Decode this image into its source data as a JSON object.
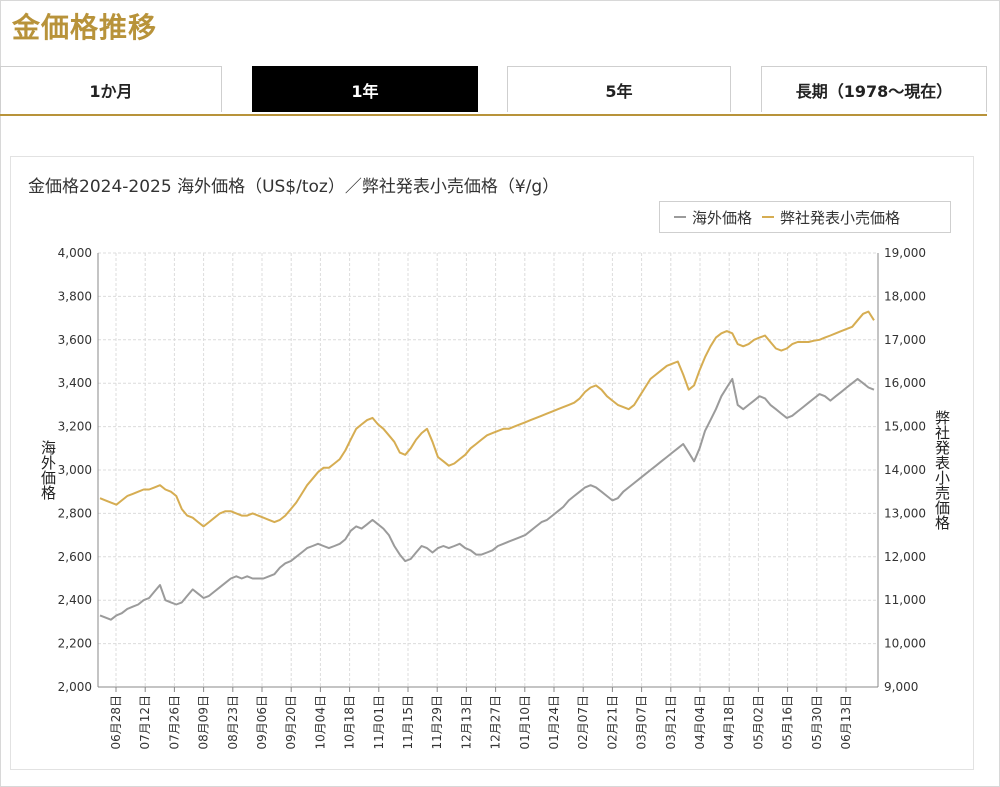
{
  "page": {
    "title": "金価格推移"
  },
  "tabs": [
    {
      "label": "1か月",
      "active": false
    },
    {
      "label": "1年",
      "active": true
    },
    {
      "label": "5年",
      "active": false
    },
    {
      "label": "長期（1978〜現在）",
      "active": false
    }
  ],
  "colors": {
    "accent": "#b8933a",
    "overseas": "#9b9b9b",
    "retail": "#d6ad52",
    "active_tab": "#000000"
  },
  "chart_data": {
    "type": "line",
    "title": "金価格2024-2025 海外価格（US$/toz）／弊社発表小売価格（¥/g）",
    "legend": {
      "position": "top-right",
      "entries": [
        "海外価格",
        "弊社発表小売価格"
      ]
    },
    "grid": true,
    "x_tick_labels": [
      "06月28日",
      "07月12日",
      "07月26日",
      "08月09日",
      "08月23日",
      "09月06日",
      "09月20日",
      "10月04日",
      "10月18日",
      "11月01日",
      "11月15日",
      "11月29日",
      "12月13日",
      "12月27日",
      "01月10日",
      "01月24日",
      "02月07日",
      "02月21日",
      "03月07日",
      "03月21日",
      "04月04日",
      "04月18日",
      "05月02日",
      "05月16日",
      "05月30日",
      "06月13日"
    ],
    "y_left": {
      "label": "海外価格",
      "min": 2000,
      "max": 4000,
      "ticks": [
        "2,000",
        "2,200",
        "2,400",
        "2,600",
        "2,800",
        "3,000",
        "3,200",
        "3,400",
        "3,600",
        "3,800",
        "4,000"
      ]
    },
    "y_right": {
      "label": "弊社発表小売価格",
      "min": 9000,
      "max": 19000,
      "ticks": [
        "9,000",
        "10,000",
        "11,000",
        "12,000",
        "13,000",
        "14,000",
        "15,000",
        "16,000",
        "17,000",
        "18,000",
        "19,000"
      ]
    },
    "series": [
      {
        "name": "海外価格",
        "axis": "left",
        "color": "#9b9b9b",
        "values": [
          2330,
          2320,
          2310,
          2330,
          2340,
          2360,
          2370,
          2380,
          2400,
          2410,
          2440,
          2470,
          2400,
          2390,
          2380,
          2390,
          2420,
          2450,
          2430,
          2410,
          2420,
          2440,
          2460,
          2480,
          2500,
          2510,
          2500,
          2510,
          2500,
          2500,
          2500,
          2510,
          2520,
          2550,
          2570,
          2580,
          2600,
          2620,
          2640,
          2650,
          2660,
          2650,
          2640,
          2650,
          2660,
          2680,
          2720,
          2740,
          2730,
          2750,
          2770,
          2750,
          2730,
          2700,
          2650,
          2610,
          2580,
          2590,
          2620,
          2650,
          2640,
          2620,
          2640,
          2650,
          2640,
          2650,
          2660,
          2640,
          2630,
          2610,
          2610,
          2620,
          2630,
          2650,
          2660,
          2670,
          2680,
          2690,
          2700,
          2720,
          2740,
          2760,
          2770,
          2790,
          2810,
          2830,
          2860,
          2880,
          2900,
          2920,
          2930,
          2920,
          2900,
          2880,
          2860,
          2870,
          2900,
          2920,
          2940,
          2960,
          2980,
          3000,
          3020,
          3040,
          3060,
          3080,
          3100,
          3120,
          3080,
          3040,
          3100,
          3180,
          3230,
          3280,
          3340,
          3380,
          3420,
          3300,
          3280,
          3300,
          3320,
          3340,
          3330,
          3300,
          3280,
          3260,
          3240,
          3250,
          3270,
          3290,
          3310,
          3330,
          3350,
          3340,
          3320,
          3340,
          3360,
          3380,
          3400,
          3420,
          3400,
          3380,
          3370
        ]
      },
      {
        "name": "弊社発表小売価格",
        "axis": "right",
        "color": "#d6ad52",
        "values": [
          13350,
          13300,
          13250,
          13200,
          13300,
          13400,
          13450,
          13500,
          13550,
          13550,
          13600,
          13650,
          13550,
          13500,
          13400,
          13100,
          12950,
          12900,
          12800,
          12700,
          12800,
          12900,
          13000,
          13050,
          13050,
          13000,
          12950,
          12950,
          13000,
          12950,
          12900,
          12850,
          12800,
          12850,
          12950,
          13100,
          13250,
          13450,
          13650,
          13800,
          13950,
          14050,
          14050,
          14150,
          14250,
          14450,
          14700,
          14950,
          15050,
          15150,
          15200,
          15050,
          14950,
          14800,
          14650,
          14400,
          14350,
          14500,
          14700,
          14850,
          14950,
          14650,
          14300,
          14200,
          14100,
          14150,
          14250,
          14350,
          14500,
          14600,
          14700,
          14800,
          14850,
          14900,
          14950,
          14950,
          15000,
          15050,
          15100,
          15150,
          15200,
          15250,
          15300,
          15350,
          15400,
          15450,
          15500,
          15550,
          15650,
          15800,
          15900,
          15950,
          15850,
          15700,
          15600,
          15500,
          15450,
          15400,
          15500,
          15700,
          15900,
          16100,
          16200,
          16300,
          16400,
          16450,
          16500,
          16200,
          15850,
          15950,
          16300,
          16600,
          16850,
          17050,
          17150,
          17200,
          17150,
          16900,
          16850,
          16900,
          17000,
          17050,
          17100,
          16950,
          16800,
          16750,
          16800,
          16900,
          16950,
          16950,
          16950,
          16980,
          17000,
          17050,
          17100,
          17150,
          17200,
          17250,
          17300,
          17450,
          17600,
          17650,
          17450
        ]
      }
    ]
  }
}
